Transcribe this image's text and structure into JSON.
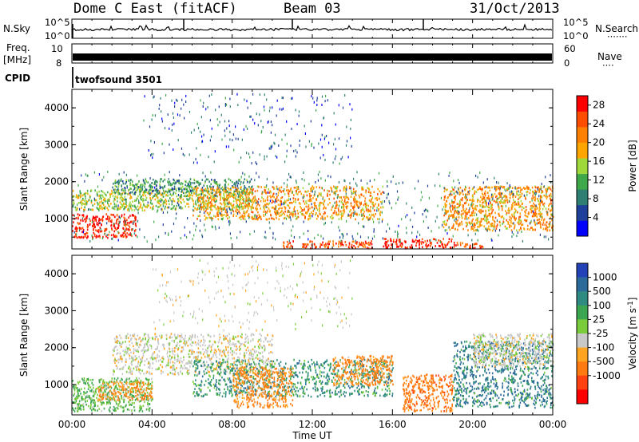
{
  "header": {
    "site": "Dome C East (fitACF)",
    "beam": "Beam 03",
    "date": "31/Oct/2013"
  },
  "strip_nsky": {
    "left_label": "N.Sky",
    "right_label": "N.Search",
    "right_dots": "·······",
    "left_ticks": [
      "10^5",
      "10^0"
    ],
    "right_ticks": [
      "10^5",
      "10^0"
    ]
  },
  "strip_freq": {
    "left_label_1": "Freq.",
    "left_label_2": "[MHz]",
    "right_label": "Nave",
    "right_dots": "····",
    "left_ticks": [
      "10",
      "8"
    ],
    "right_ticks": [
      "60",
      "0"
    ]
  },
  "cpid": {
    "label": "CPID",
    "program": "twofsound 3501"
  },
  "axes": {
    "ylabel": "Slant Range [km]",
    "xlabel": "Time UT",
    "x_ticks": [
      "00:00",
      "04:00",
      "08:00",
      "12:00",
      "16:00",
      "20:00",
      "00:00"
    ],
    "y_ticks": [
      "4000",
      "3000",
      "2000",
      "1000"
    ]
  },
  "colors": {
    "power": [
      "#0000ff",
      "#1e3f9a",
      "#2f7f73",
      "#3fa84a",
      "#9fd83a",
      "#ffa500",
      "#ff7f00",
      "#ff4d00",
      "#ff0000"
    ],
    "velocity": [
      "#2342b8",
      "#2c6a9a",
      "#2f8a82",
      "#3ba550",
      "#7acc3a",
      "#c8c8c8",
      "#ffa420",
      "#ff7a10",
      "#ff4010",
      "#ff0000"
    ]
  },
  "chart_data": [
    {
      "type": "heatmap",
      "panel": "power",
      "xlabel": "Time UT",
      "ylabel": "Slant Range [km]",
      "xlim": [
        0,
        24
      ],
      "ylim": [
        180,
        4500
      ],
      "colorbar": {
        "label": "Power [dB]",
        "ticks": [
          "28",
          "24",
          "20",
          "16",
          "12",
          "8",
          "4"
        ],
        "range": [
          0,
          30
        ]
      },
      "regions": [
        {
          "t": [
            0,
            3.2
          ],
          "r": [
            500,
            1150
          ],
          "value": 28
        },
        {
          "t": [
            0,
            9
          ],
          "r": [
            1250,
            1800
          ],
          "value": 15
        },
        {
          "t": [
            2,
            9
          ],
          "r": [
            1700,
            2100
          ],
          "value": 10
        },
        {
          "t": [
            6,
            15.5
          ],
          "r": [
            1000,
            1900
          ],
          "value": 20
        },
        {
          "t": [
            10.5,
            15
          ],
          "r": [
            220,
            420
          ],
          "value": 25
        },
        {
          "t": [
            15.5,
            19
          ],
          "r": [
            220,
            480
          ],
          "value": 28
        },
        {
          "t": [
            19,
            20.5
          ],
          "r": [
            220,
            380
          ],
          "value": 26
        },
        {
          "t": [
            18.5,
            24
          ],
          "r": [
            700,
            1900
          ],
          "value": 20
        },
        {
          "t": [
            0,
            24
          ],
          "r": [
            400,
            2300
          ],
          "value": 8
        },
        {
          "t": [
            3.5,
            14
          ],
          "r": [
            2500,
            4400
          ],
          "value": 6
        }
      ]
    },
    {
      "type": "heatmap",
      "panel": "velocity",
      "xlabel": "Time UT",
      "ylabel": "Slant Range [km]",
      "xlim": [
        0,
        24
      ],
      "ylim": [
        180,
        4500
      ],
      "colorbar": {
        "label": "Velocity [m s^-1]",
        "ticks": [
          "1000",
          "500",
          "100",
          "25",
          "-25",
          "-100",
          "-500",
          "-1000"
        ]
      },
      "regions": [
        {
          "t": [
            0,
            4
          ],
          "r": [
            300,
            1200
          ],
          "value": 100
        },
        {
          "t": [
            1.2,
            4
          ],
          "r": [
            600,
            1100
          ],
          "value": -100
        },
        {
          "t": [
            2,
            10
          ],
          "r": [
            1300,
            2400
          ],
          "value": 0
        },
        {
          "t": [
            6,
            16
          ],
          "r": [
            700,
            1700
          ],
          "value": 300
        },
        {
          "t": [
            8,
            11
          ],
          "r": [
            400,
            1500
          ],
          "value": -120
        },
        {
          "t": [
            13,
            16
          ],
          "r": [
            1000,
            1800
          ],
          "value": -150
        },
        {
          "t": [
            16.5,
            19
          ],
          "r": [
            300,
            1300
          ],
          "value": -300
        },
        {
          "t": [
            19,
            24
          ],
          "r": [
            400,
            2200
          ],
          "value": 500
        },
        {
          "t": [
            20,
            24
          ],
          "r": [
            1500,
            2400
          ],
          "value": 0
        },
        {
          "t": [
            4,
            14
          ],
          "r": [
            2500,
            4400
          ],
          "value": 0
        }
      ]
    }
  ]
}
